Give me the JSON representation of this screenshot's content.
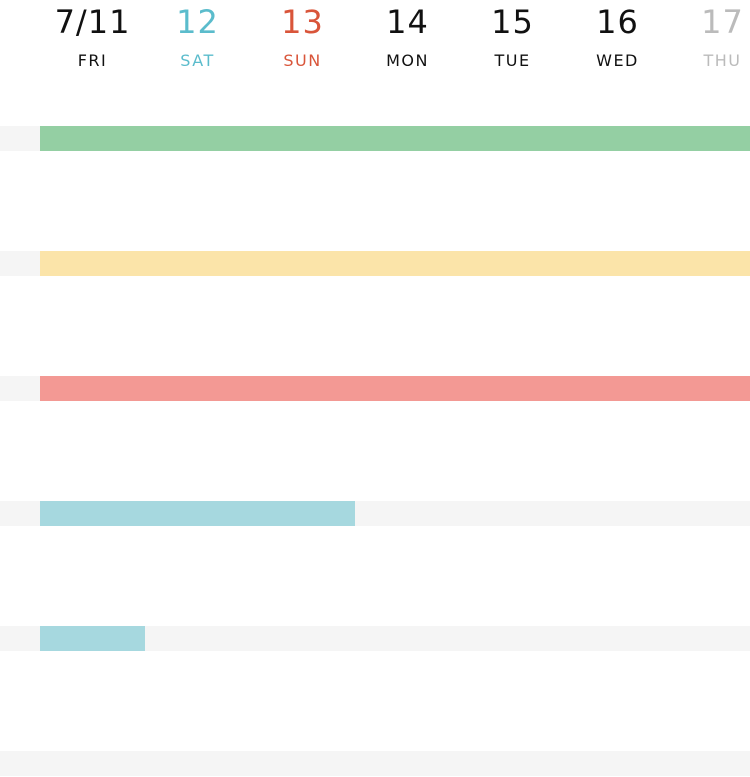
{
  "header": {
    "days": [
      {
        "num": "7/11",
        "name": "FRI",
        "color": "#111111"
      },
      {
        "num": "12",
        "name": "SAT",
        "color": "#5bbccc"
      },
      {
        "num": "13",
        "name": "SUN",
        "color": "#d9553a"
      },
      {
        "num": "14",
        "name": "MON",
        "color": "#111111"
      },
      {
        "num": "15",
        "name": "TUE",
        "color": "#111111"
      },
      {
        "num": "16",
        "name": "WED",
        "color": "#111111"
      },
      {
        "num": "17",
        "name": "THU",
        "color": "#bbbbbb"
      }
    ]
  },
  "timeline": {
    "rows": [
      {
        "bar_color": "#94cfa3",
        "span_days": 7
      },
      {
        "bar_color": "#fbe4a9",
        "span_days": 7
      },
      {
        "bar_color": "#f39994",
        "span_days": 7
      },
      {
        "bar_color": "#a6d8df",
        "span_days": 3
      },
      {
        "bar_color": "#a6d8df",
        "span_days": 1
      },
      {
        "bar_color": null,
        "span_days": 0
      }
    ]
  }
}
